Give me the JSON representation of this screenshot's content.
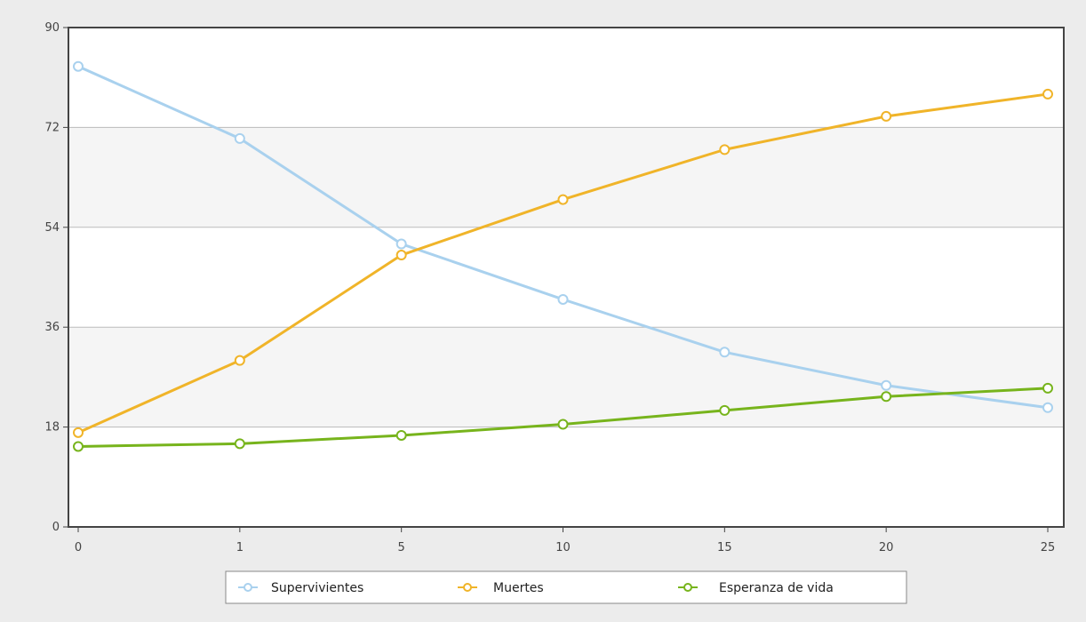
{
  "chart_data": {
    "type": "line",
    "categories": [
      "0",
      "1",
      "5",
      "10",
      "15",
      "20",
      "25"
    ],
    "ylim": [
      0,
      90
    ],
    "yticks": [
      0,
      18,
      36,
      54,
      72,
      90
    ],
    "grid": true,
    "legend_position": "bottom-center",
    "series": [
      {
        "name": "Supervivientes",
        "color": "#a9d1ee",
        "values": [
          83,
          70,
          51,
          41,
          31.5,
          25.5,
          21.5
        ]
      },
      {
        "name": "Muertes",
        "color": "#f0b429",
        "values": [
          17,
          30,
          49,
          59,
          68,
          74,
          78
        ]
      },
      {
        "name": "Esperanza de vida",
        "color": "#77b41c",
        "values": [
          14.5,
          15,
          16.5,
          18.5,
          21,
          23.5,
          25
        ]
      }
    ]
  }
}
